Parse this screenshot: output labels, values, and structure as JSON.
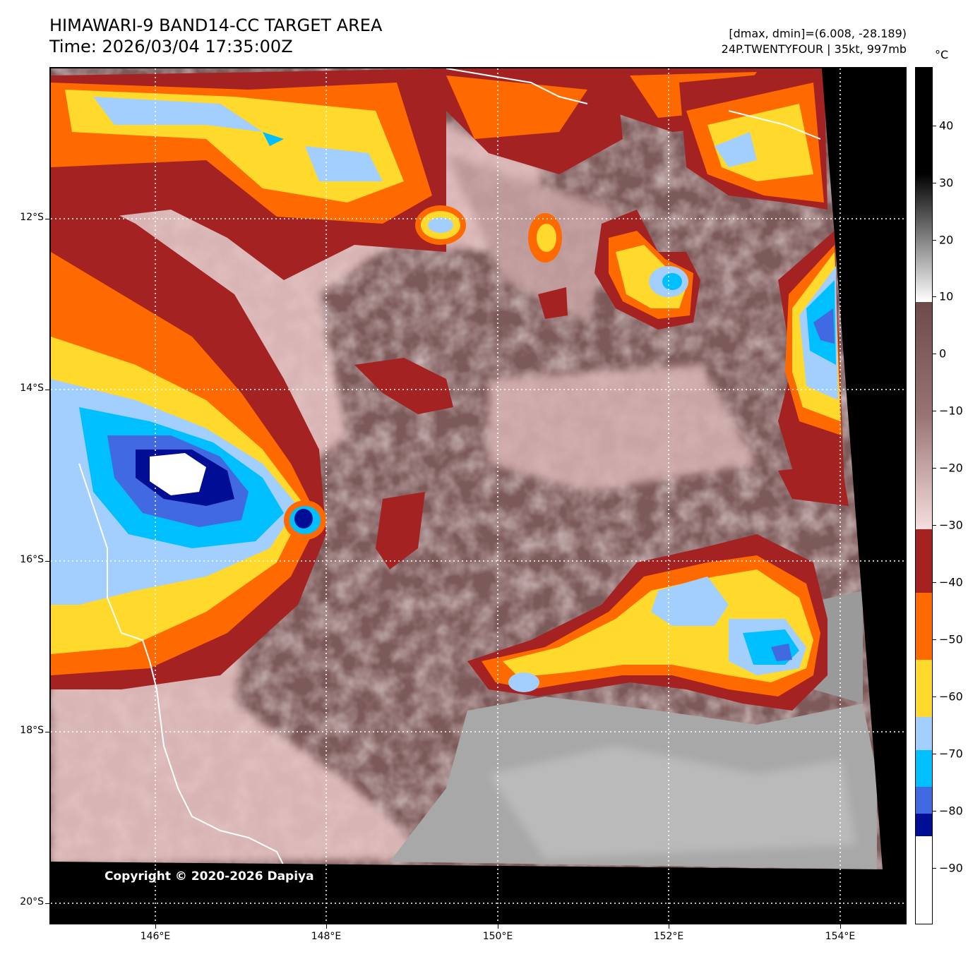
{
  "header": {
    "title_line1": "HIMAWARI-9 BAND14-CC TARGET AREA",
    "title_line2": "Time: 2026/03/04 17:35:00Z",
    "info_line1": "[dmax, dmin]=(6.008, -28.189)",
    "info_line2": "24P.TWENTYFOUR | 35kt, 997mb"
  },
  "map": {
    "copyright": "Copyright © 2020-2026 Dapiya",
    "lat_ticks": [
      "12°S",
      "14°S",
      "16°S",
      "18°S",
      "20°S"
    ],
    "lon_ticks": [
      "146°E",
      "148°E",
      "150°E",
      "152°E",
      "154°E"
    ]
  },
  "colorbar": {
    "unit": "°C",
    "labels": [
      "40",
      "30",
      "20",
      "10",
      "0",
      "−10",
      "−20",
      "−30",
      "−40",
      "−50",
      "−60",
      "−70",
      "−80",
      "−90"
    ],
    "colors": {
      "white_cold": "#ffffff",
      "navy": "#000e96",
      "royal_blue": "#4169e1",
      "deep_sky_blue": "#00bfff",
      "light_blue": "#a3cfff",
      "yellow": "#ffd92b",
      "orange": "#ff6a00",
      "dark_red": "#a52222",
      "pink": "#f4d6d6",
      "brown": "#7d5a5a",
      "gray": "#9a9a9a",
      "black": "#000000"
    }
  }
}
